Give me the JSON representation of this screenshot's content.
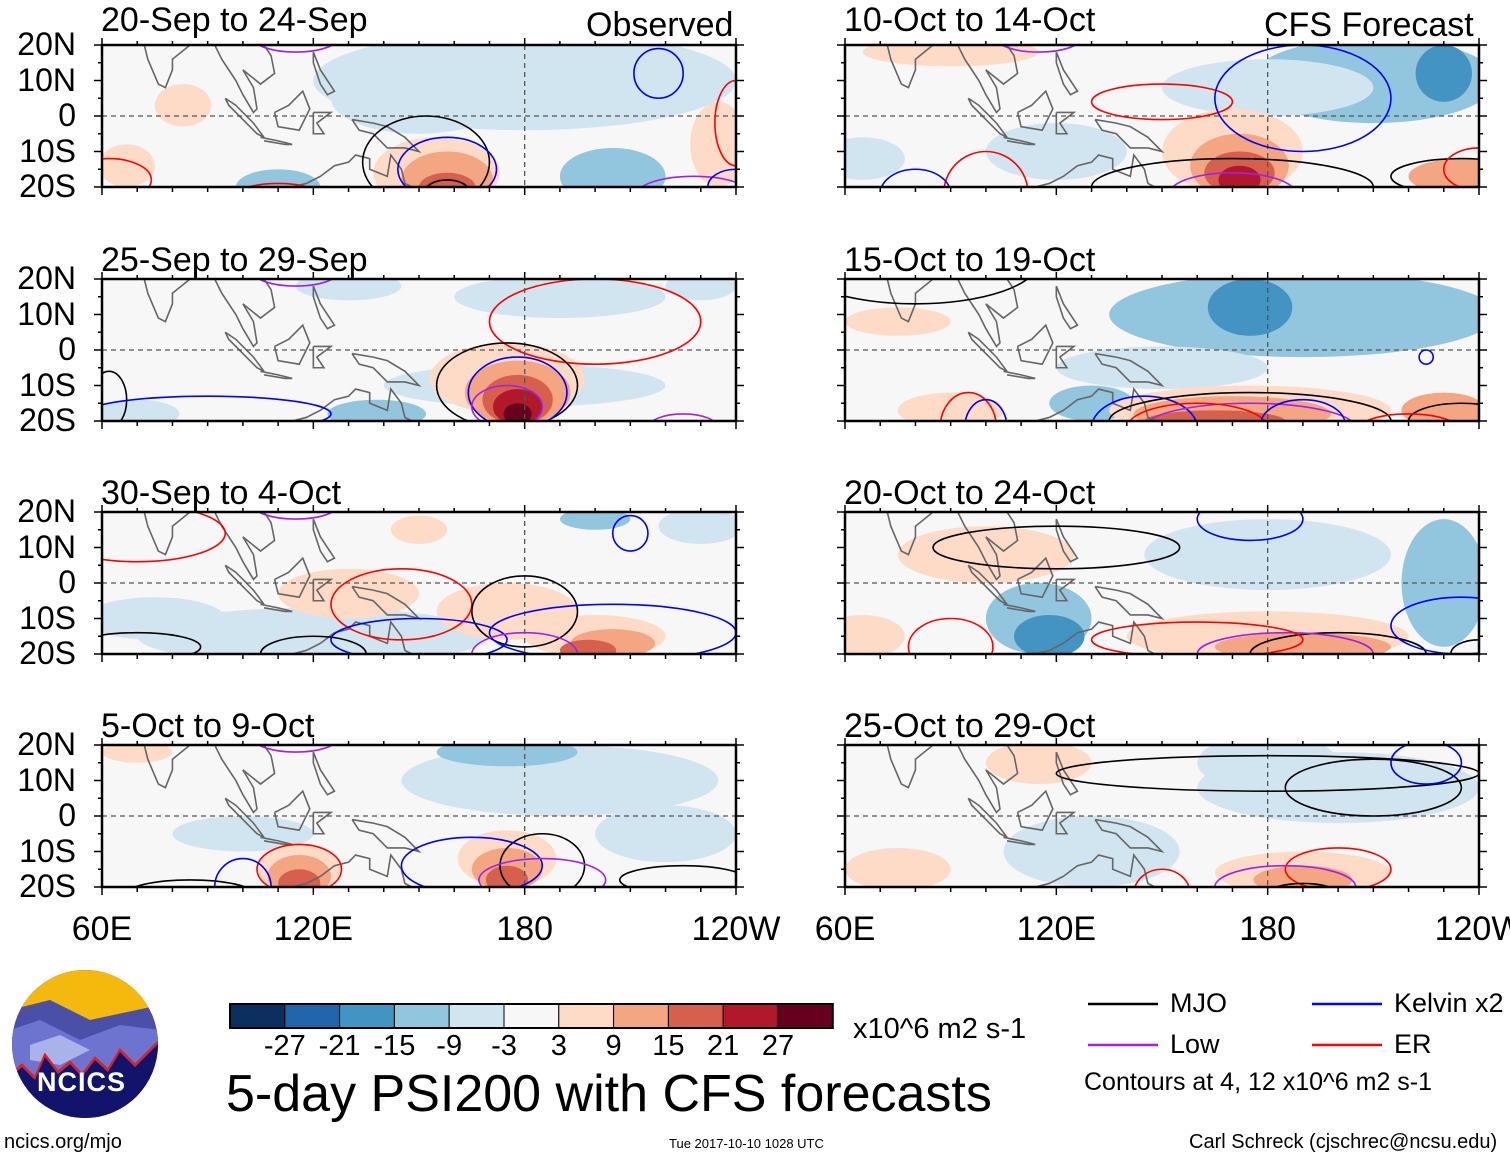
{
  "header": {
    "left_label": "Observed",
    "right_label": "CFS Forecast"
  },
  "panels": [
    {
      "title": "20-Sep to 24-Sep",
      "group": "observed"
    },
    {
      "title": "25-Sep to 29-Sep",
      "group": "observed"
    },
    {
      "title": "30-Sep to 4-Oct",
      "group": "observed"
    },
    {
      "title": "5-Oct to 9-Oct",
      "group": "observed"
    },
    {
      "title": "10-Oct to 14-Oct",
      "group": "forecast"
    },
    {
      "title": "15-Oct to 19-Oct",
      "group": "forecast"
    },
    {
      "title": "20-Oct to 24-Oct",
      "group": "forecast"
    },
    {
      "title": "25-Oct to 29-Oct",
      "group": "forecast"
    }
  ],
  "lat_labels": [
    "20N",
    "10N",
    "0",
    "10S",
    "20S"
  ],
  "lon_labels": [
    "60E",
    "120E",
    "180",
    "120W"
  ],
  "colorbar": {
    "colors": [
      "#0b2f5e",
      "#2166ac",
      "#4393c3",
      "#92c5de",
      "#d1e5f0",
      "#f7f7f7",
      "#fddbc7",
      "#f4a582",
      "#d6604d",
      "#b2182b",
      "#67001f"
    ],
    "ticks": [
      "-27",
      "-21",
      "-15",
      "-9",
      "-3",
      "3",
      "9",
      "15",
      "21",
      "27"
    ],
    "units": "x10^6 m2 s-1"
  },
  "title": "5-day PSI200 with CFS forecasts",
  "legend": {
    "items": [
      {
        "label": "MJO",
        "color": "#000000"
      },
      {
        "label": "Kelvin x2",
        "color": "#0000ff"
      },
      {
        "label": "Low",
        "color": "#a020f0"
      },
      {
        "label": "ER",
        "color": "#ff0000"
      }
    ],
    "note": "Contours at 4, 12 x10^6 m2 s-1"
  },
  "logo": {
    "text": "NCICS"
  },
  "footer": {
    "url": "ncics.org/mjo",
    "timestamp": "Tue 2017-10-10 1028 UTC",
    "author": "Carl Schreck (cjschrec@ncsu.edu)"
  }
}
